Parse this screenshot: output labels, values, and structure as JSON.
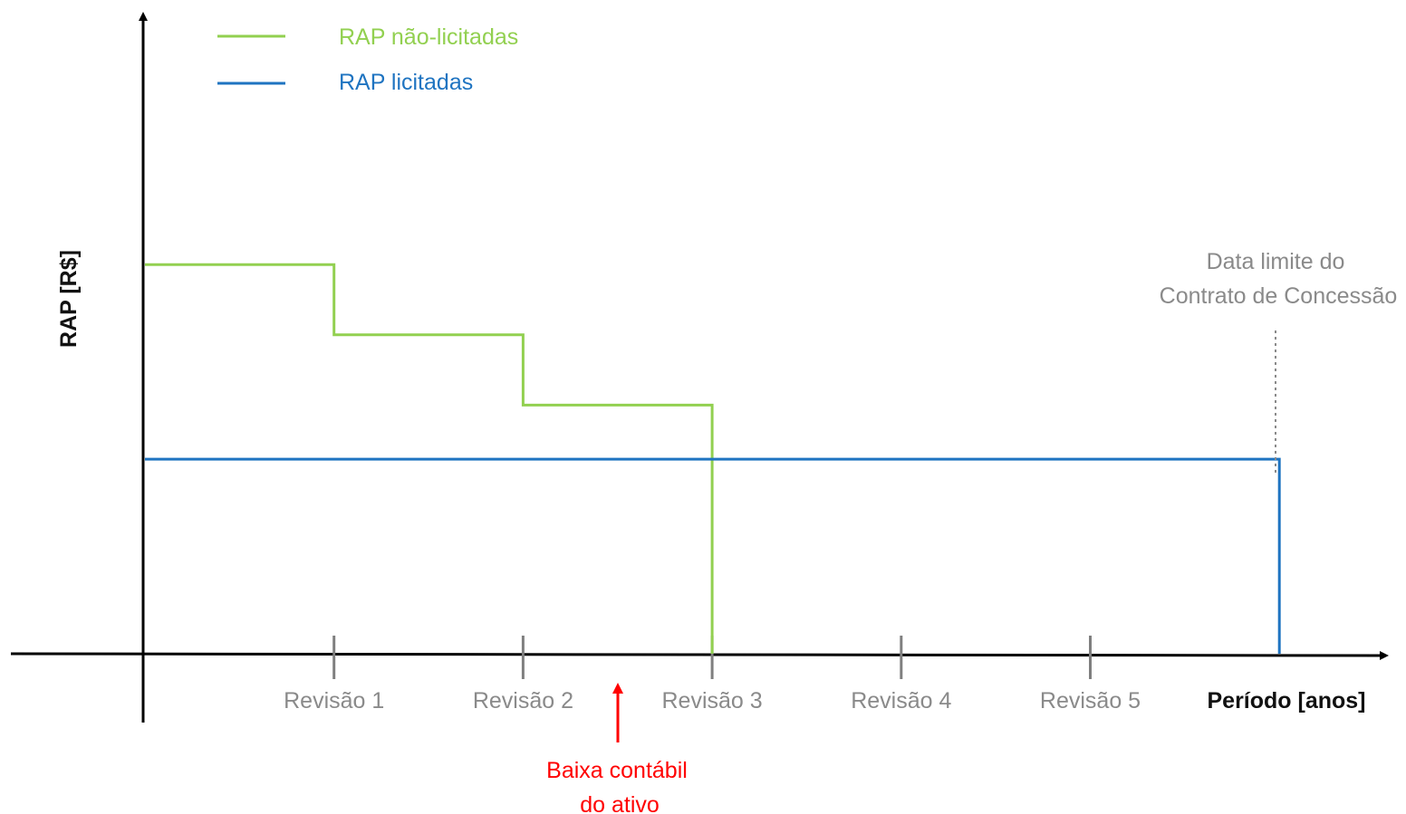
{
  "chart_data": {
    "type": "line",
    "title": "",
    "xlabel": "Período [anos]",
    "ylabel": "RAP [R$]",
    "categories": [
      "Revisão 1",
      "Revisão 2",
      "Revisão 3",
      "Revisão 4",
      "Revisão 5"
    ],
    "series": [
      {
        "name": "RAP não-licitadas",
        "color": "#92d050",
        "points": [
          [
            0,
            0.72
          ],
          [
            1,
            0.72
          ],
          [
            1,
            0.59
          ],
          [
            2,
            0.59
          ],
          [
            2,
            0.46
          ],
          [
            3,
            0.46
          ],
          [
            3,
            0.0
          ]
        ]
      },
      {
        "name": "RAP licitadas",
        "color": "#1f74c1",
        "points": [
          [
            0,
            0.36
          ],
          [
            6,
            0.36
          ],
          [
            6,
            0.0
          ]
        ]
      }
    ],
    "legend_position": "top-left",
    "grid": false,
    "annotations": {
      "contract_limit": {
        "lines": [
          "Data limite do",
          "Contrato de Concessão"
        ],
        "x": 6,
        "color": "#8a8a8a"
      },
      "write_off": {
        "lines": [
          "Baixa contábil",
          "do ativo"
        ],
        "x": 2.5,
        "color": "#ff0000"
      }
    }
  }
}
